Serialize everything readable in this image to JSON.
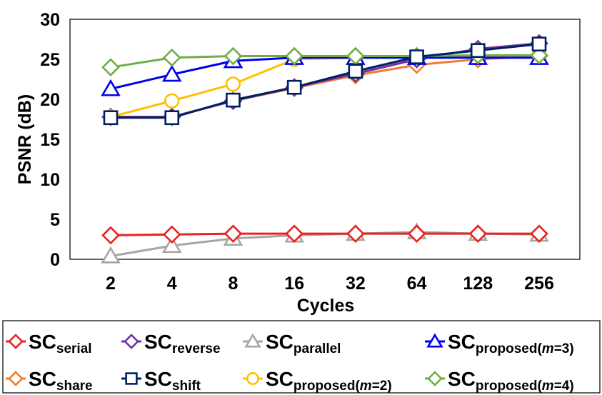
{
  "chart_data": {
    "type": "line",
    "title": "",
    "xlabel": "Cycles",
    "ylabel": "PSNR (dB)",
    "categories": [
      "2",
      "4",
      "8",
      "16",
      "32",
      "64",
      "128",
      "256"
    ],
    "ylim": [
      0,
      30
    ],
    "yticks": [
      "0",
      "5",
      "10",
      "15",
      "20",
      "25",
      "30"
    ],
    "grid": false,
    "legend_position": "bottom",
    "series": [
      {
        "name": "SCserial",
        "legend_main": "SC",
        "legend_sub": "serial",
        "color": "#e8231e",
        "marker": "diamond",
        "values": [
          3.0,
          3.1,
          3.2,
          3.2,
          3.2,
          3.2,
          3.2,
          3.2
        ]
      },
      {
        "name": "SCreverse",
        "legend_main": "SC",
        "legend_sub": "reverse",
        "color": "#7030a0",
        "marker": "diamond",
        "values": [
          17.8,
          17.8,
          19.8,
          21.5,
          23.2,
          25.0,
          26.3,
          27.0
        ]
      },
      {
        "name": "SCparallel",
        "legend_main": "SC",
        "legend_sub": "parallel",
        "color": "#a6a6a6",
        "marker": "triangle",
        "values": [
          0.4,
          1.7,
          2.6,
          3.0,
          3.2,
          3.4,
          3.2,
          3.1
        ]
      },
      {
        "name": "SCproposed(m=3)",
        "legend_main": "SC",
        "legend_sub": "proposed(",
        "legend_sub_italic": "m",
        "legend_sub_tail": "=3)",
        "color": "#0000ee",
        "marker": "triangle",
        "values": [
          21.3,
          23.1,
          24.8,
          25.2,
          25.2,
          25.2,
          25.2,
          25.2
        ]
      },
      {
        "name": "SCshare",
        "legend_main": "SC",
        "legend_sub": "share",
        "color": "#ed7d31",
        "marker": "diamond",
        "values": [
          17.8,
          17.8,
          19.8,
          21.4,
          23.0,
          24.3,
          25.0,
          25.4
        ]
      },
      {
        "name": "SCshift",
        "legend_main": "SC",
        "legend_sub": "shift",
        "color": "#002060",
        "marker": "square",
        "values": [
          17.7,
          17.7,
          19.9,
          21.5,
          23.5,
          25.3,
          26.1,
          26.9
        ]
      },
      {
        "name": "SCproposed(m=2)",
        "legend_main": "SC",
        "legend_sub": "proposed(",
        "legend_sub_italic": "m",
        "legend_sub_tail": "=2)",
        "color": "#ffc000",
        "marker": "circle",
        "values": [
          17.8,
          19.8,
          21.9,
          25.0,
          25.2,
          25.3,
          25.4,
          25.4
        ]
      },
      {
        "name": "SCproposed(m=4)",
        "legend_main": "SC",
        "legend_sub": "proposed(",
        "legend_sub_italic": "m",
        "legend_sub_tail": "=4)",
        "color": "#70ad47",
        "marker": "diamond",
        "values": [
          24.0,
          25.2,
          25.4,
          25.4,
          25.4,
          25.4,
          25.5,
          25.5
        ]
      }
    ]
  }
}
